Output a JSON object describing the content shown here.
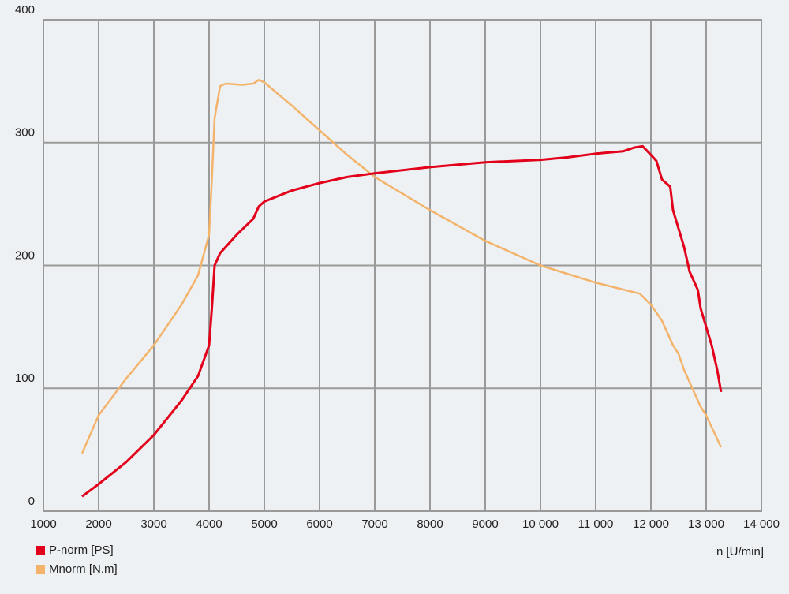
{
  "chart_data": {
    "type": "line",
    "x_label": "n [U/min]",
    "xlim": [
      1000,
      14000
    ],
    "xticks": [
      1000,
      2000,
      3000,
      4000,
      5000,
      6000,
      7000,
      8000,
      9000,
      {
        "value": 10000,
        "label": "10 000"
      },
      {
        "value": 11000,
        "label": "11 000"
      },
      {
        "value": 12000,
        "label": "12 000"
      },
      {
        "value": 13000,
        "label": "13 000"
      },
      {
        "value": 14000,
        "label": "14 000"
      }
    ],
    "ylim": [
      0,
      400
    ],
    "yticks": [
      0,
      100,
      200,
      300,
      400
    ],
    "grid": true,
    "series": [
      {
        "name": "P-norm [PS]",
        "color": "#e2001a",
        "x": [
          1700,
          2000,
          2500,
          3000,
          3500,
          3800,
          4000,
          4050,
          4100,
          4200,
          4500,
          4800,
          4900,
          5000,
          5500,
          6000,
          6500,
          7000,
          8000,
          9000,
          10000,
          10500,
          11000,
          11500,
          11700,
          11850,
          12000,
          12100,
          12200,
          12350,
          12400,
          12500,
          12600,
          12700,
          12850,
          12900,
          13000,
          13100,
          13200,
          13270
        ],
        "values": [
          12,
          22,
          40,
          62,
          90,
          110,
          135,
          165,
          200,
          210,
          225,
          238,
          248,
          252,
          261,
          267,
          272,
          275,
          280,
          284,
          286,
          288,
          291,
          293,
          296,
          297,
          290,
          285,
          270,
          264,
          245,
          230,
          215,
          195,
          180,
          165,
          150,
          135,
          115,
          97
        ]
      },
      {
        "name": "Mnorm [N.m]",
        "color": "#f3b36b",
        "x": [
          1700,
          2000,
          2500,
          3000,
          3500,
          3800,
          4000,
          4050,
          4100,
          4200,
          4300,
          4600,
          4800,
          4900,
          5000,
          5500,
          6000,
          6500,
          7000,
          8000,
          9000,
          10000,
          11000,
          11800,
          12000,
          12200,
          12300,
          12400,
          12500,
          12600,
          12700,
          12900,
          13000,
          13270
        ],
        "values": [
          47,
          78,
          108,
          135,
          168,
          192,
          225,
          270,
          320,
          346,
          348,
          347,
          348,
          351,
          349,
          330,
          310,
          290,
          272,
          245,
          220,
          200,
          186,
          177,
          168,
          155,
          145,
          135,
          128,
          115,
          105,
          85,
          78,
          52
        ]
      }
    ]
  }
}
